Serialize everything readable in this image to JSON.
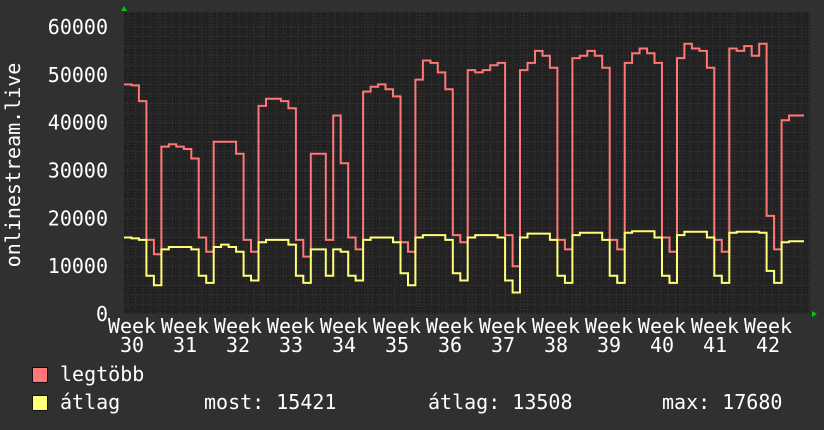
{
  "chart_data": {
    "type": "line",
    "title": "",
    "ylabel": "onlinestream.live",
    "xlabel": "",
    "ylim": [
      0,
      60000
    ],
    "yticks": [
      "0",
      "10000",
      "20000",
      "30000",
      "40000",
      "50000",
      "60000"
    ],
    "xtick_labels": [
      "Week 30",
      "Week 31",
      "Week 32",
      "Week 33",
      "Week 34",
      "Week 35",
      "Week 36",
      "Week 37",
      "Week 38",
      "Week 39",
      "Week 40",
      "Week 41",
      "Week 42"
    ],
    "grid": true,
    "series": [
      {
        "name": "legtöbb",
        "color": "#ff7777",
        "values": [
          48000,
          47800,
          44500,
          15500,
          12500,
          35000,
          35500,
          35000,
          34500,
          32500,
          16000,
          13000,
          36000,
          36000,
          36000,
          33500,
          15500,
          13000,
          43500,
          45000,
          45000,
          44500,
          43000,
          15500,
          12000,
          33500,
          33500,
          15500,
          41500,
          31500,
          16000,
          13500,
          46500,
          47500,
          48000,
          47000,
          45500,
          15000,
          13000,
          49000,
          53000,
          52500,
          50500,
          47000,
          16500,
          15000,
          51000,
          50500,
          51000,
          52000,
          52500,
          16500,
          10000,
          51000,
          52500,
          55000,
          54000,
          51500,
          15500,
          13500,
          53500,
          54000,
          55000,
          54000,
          51500,
          15500,
          13500,
          52500,
          54500,
          55500,
          54500,
          52500,
          16000,
          13000,
          53500,
          56500,
          55500,
          55000,
          51500,
          15500,
          13000,
          55500,
          55000,
          56000,
          54000,
          56500,
          20500,
          13500,
          40500,
          41500,
          41500
        ]
      },
      {
        "name": "átlag",
        "color": "#ffff77",
        "values": [
          16000,
          15800,
          15500,
          8000,
          6000,
          13500,
          14000,
          14000,
          14000,
          13500,
          8000,
          6500,
          14000,
          14500,
          14000,
          13000,
          8000,
          7000,
          15000,
          15500,
          15500,
          15500,
          14500,
          8000,
          6500,
          13500,
          13500,
          8000,
          13500,
          13000,
          8000,
          7000,
          15500,
          16000,
          16000,
          16000,
          15000,
          8500,
          6000,
          16000,
          16500,
          16500,
          16500,
          15500,
          8500,
          7000,
          16000,
          16500,
          16500,
          16500,
          16000,
          7000,
          4500,
          16000,
          16800,
          16800,
          16800,
          15500,
          8000,
          6500,
          16500,
          17000,
          17000,
          17000,
          15500,
          8000,
          6500,
          17000,
          17300,
          17300,
          17300,
          16000,
          8000,
          6500,
          16500,
          17200,
          17200,
          17200,
          16000,
          8000,
          6500,
          17000,
          17200,
          17200,
          17200,
          17000,
          9000,
          6500,
          15000,
          15200,
          15200
        ]
      }
    ]
  },
  "legend": {
    "max_label": "legtöbb",
    "avg_label": "átlag",
    "stats": {
      "current": "most: 15421",
      "average": "átlag: 13508",
      "maximum": "max: 17680"
    }
  }
}
